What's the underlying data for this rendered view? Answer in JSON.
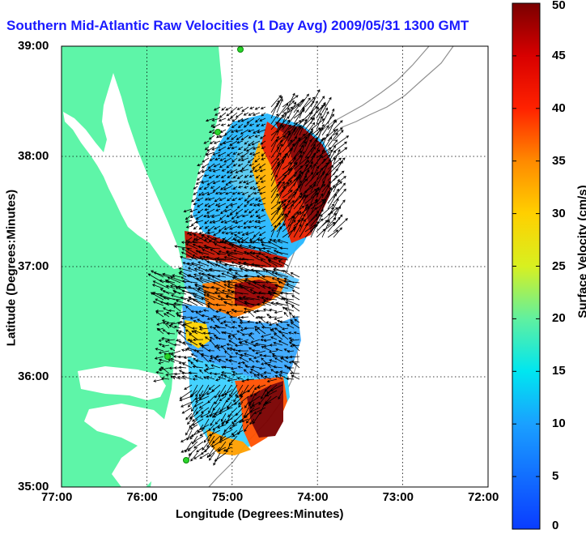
{
  "chart_data": {
    "type": "heatmap",
    "title": "Southern Mid-Atlantic Raw Velocities (1 Day Avg) 2009/05/31 1300 GMT",
    "xlabel": "Longitude (Degrees:Minutes)",
    "ylabel": "Latitude (Degrees:Minutes)",
    "xlim": [
      -77,
      -72
    ],
    "ylim": [
      35,
      39
    ],
    "x_ticks": [
      "77:00",
      "76:00",
      "75:00",
      "74:00",
      "73:00",
      "72:00"
    ],
    "y_ticks": [
      "39:00",
      "38:00",
      "37:00",
      "36:00",
      "35:00"
    ],
    "grid": true,
    "colorbar": {
      "label": "Surface Velocity (cm/s)",
      "range": [
        0,
        50
      ],
      "ticks": [
        "50",
        "45",
        "40",
        "35",
        "30",
        "25",
        "20",
        "15",
        "10",
        "5",
        "0"
      ],
      "colormap": "jet"
    },
    "colors": {
      "land": "#5ef5a8",
      "water": "#ffffff",
      "title": "#1a1aff",
      "coast_contour": "#909090",
      "station": "#2bd42b"
    }
  }
}
